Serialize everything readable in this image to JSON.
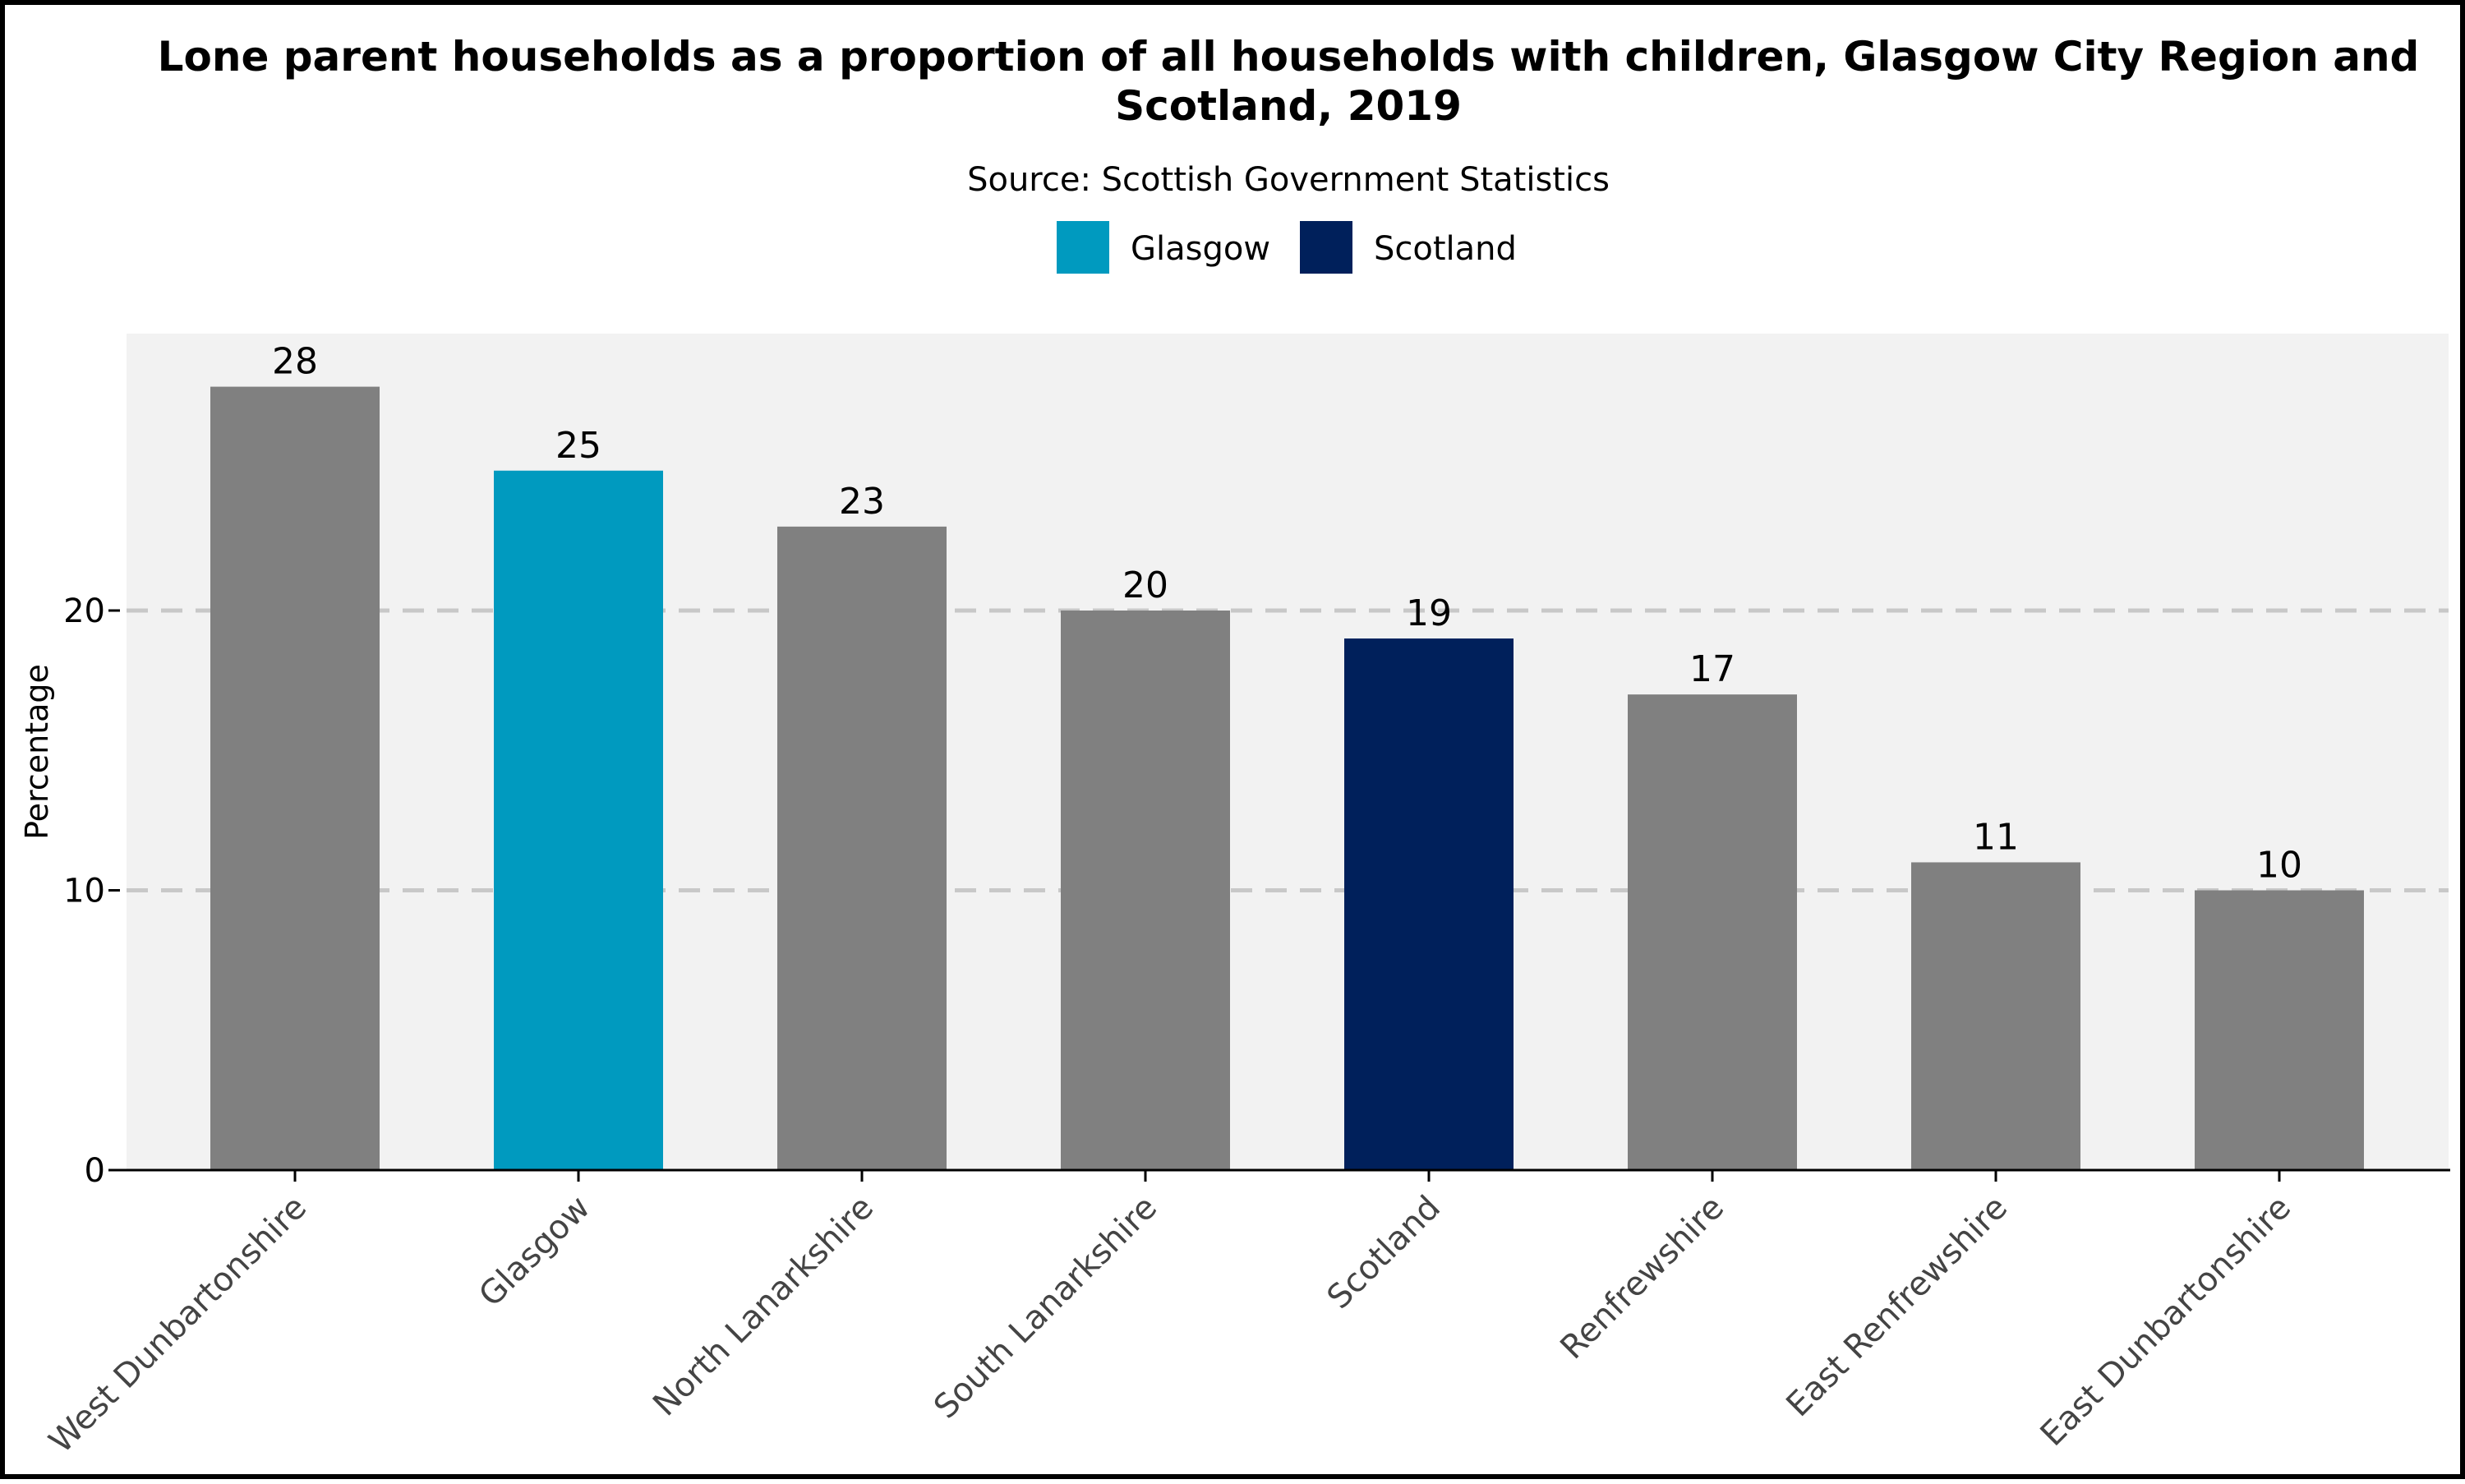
{
  "chart_data": {
    "type": "bar",
    "title_line1": "Lone parent households as a proportion of all households with children, Glasgow City Region and",
    "title_line2": "Scotland, 2019",
    "subtitle": "Source: Scottish Government Statistics",
    "xlabel": "",
    "ylabel": "Percentage",
    "ylim": [
      0,
      30
    ],
    "yticks": [
      0,
      10,
      20
    ],
    "grid": "horizontal dashed",
    "legend": {
      "placement": "top-center",
      "items": [
        {
          "name": "Glasgow",
          "color": "#009ABF"
        },
        {
          "name": "Scotland",
          "color": "#00205B"
        }
      ]
    },
    "categories": [
      "West Dunbartonshire",
      "Glasgow",
      "North Lanarkshire",
      "South Lanarkshire",
      "Scotland",
      "Renfrewshire",
      "East Renfrewshire",
      "East Dunbartonshire"
    ],
    "values": [
      28,
      25,
      23,
      20,
      19,
      17,
      11,
      10
    ],
    "bar_colors": [
      "#808080",
      "#009ABF",
      "#808080",
      "#808080",
      "#00205B",
      "#808080",
      "#808080",
      "#808080"
    ],
    "panel_background": "#F2F2F2",
    "grid_color": "#C8C8C8"
  }
}
